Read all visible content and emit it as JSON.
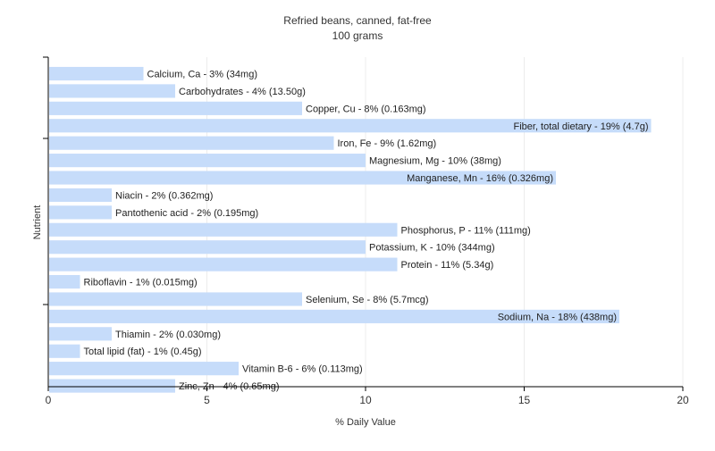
{
  "chart_data": {
    "type": "bar",
    "orientation": "horizontal",
    "title": "Refried beans, canned, fat-free",
    "subtitle": "100 grams",
    "xlabel": "% Daily Value",
    "ylabel": "Nutrient",
    "xlim": [
      0,
      20
    ],
    "xticks": [
      0,
      5,
      10,
      15,
      20
    ],
    "grid": true,
    "bar_color": "#c6dcfa",
    "categories": [
      "Calcium, Ca",
      "Carbohydrates",
      "Copper, Cu",
      "Fiber, total dietary",
      "Iron, Fe",
      "Magnesium, Mg",
      "Manganese, Mn",
      "Niacin",
      "Pantothenic acid",
      "Phosphorus, P",
      "Potassium, K",
      "Protein",
      "Riboflavin",
      "Selenium, Se",
      "Sodium, Na",
      "Thiamin",
      "Total lipid (fat)",
      "Vitamin B-6",
      "Zinc, Zn"
    ],
    "values": [
      3,
      4,
      8,
      19,
      9,
      10,
      16,
      2,
      2,
      11,
      10,
      11,
      1,
      8,
      18,
      2,
      1,
      6,
      4
    ],
    "labels": [
      "Calcium, Ca - 3% (34mg)",
      "Carbohydrates - 4% (13.50g)",
      "Copper, Cu - 8% (0.163mg)",
      "Fiber, total dietary - 19% (4.7g)",
      "Iron, Fe - 9% (1.62mg)",
      "Magnesium, Mg - 10% (38mg)",
      "Manganese, Mn - 16% (0.326mg)",
      "Niacin - 2% (0.362mg)",
      "Pantothenic acid - 2% (0.195mg)",
      "Phosphorus, P - 11% (111mg)",
      "Potassium, K - 10% (344mg)",
      "Protein - 11% (5.34g)",
      "Riboflavin - 1% (0.015mg)",
      "Selenium, Se - 8% (5.7mcg)",
      "Sodium, Na - 18% (438mg)",
      "Thiamin - 2% (0.030mg)",
      "Total lipid (fat) - 1% (0.45g)",
      "Vitamin B-6 - 6% (0.113mg)",
      "Zinc, Zn - 4% (0.65mg)"
    ]
  }
}
